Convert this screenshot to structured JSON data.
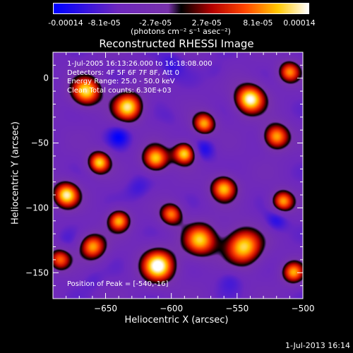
{
  "chart_data": {
    "type": "heatmap",
    "title": "Reconstructed RHESSI Image",
    "xlabel": "Heliocentric X (arcsec)",
    "ylabel": "Heliocentric Y (arcsec)",
    "xlim": [
      -690,
      -500
    ],
    "ylim": [
      -170,
      20
    ],
    "x_ticks": [
      -650,
      -600,
      -550,
      -500
    ],
    "y_ticks": [
      0,
      -50,
      -100,
      -150
    ],
    "colorbar": {
      "ticks": [
        "-0.00014",
        "-8.1e-05",
        "-2.7e-05",
        "2.7e-05",
        "8.1e-05",
        "0.00014"
      ],
      "unit_label": "(photons cm⁻² s⁻¹ asec⁻²)",
      "range": [
        -0.00014,
        0.00014
      ]
    },
    "annotations": [
      "1-Jul-2005 16:13:26.000 to 16:18:08.000",
      "Detectors: 4F 5F 6F 7F 8F, Att 0",
      "Energy Range: 25.0 - 50.0 keV",
      "Clean     Total counts: 6.30E+03"
    ],
    "peak_label": "Position of Peak = [-540,-16]",
    "sources": [
      {
        "x": -610,
        "y": -145,
        "v": 1.0,
        "s": 9
      },
      {
        "x": -540,
        "y": -16,
        "v": 1.0,
        "s": 8
      },
      {
        "x": -545,
        "y": -130,
        "v": 0.85,
        "s": 10
      },
      {
        "x": -578,
        "y": -125,
        "v": 0.75,
        "s": 9
      },
      {
        "x": -680,
        "y": -90,
        "v": 0.9,
        "s": 7
      },
      {
        "x": -665,
        "y": -10,
        "v": 0.85,
        "s": 8
      },
      {
        "x": -655,
        "y": -65,
        "v": 0.8,
        "s": 6
      },
      {
        "x": -633,
        "y": -22,
        "v": 0.85,
        "s": 8
      },
      {
        "x": -612,
        "y": -62,
        "v": 0.8,
        "s": 7
      },
      {
        "x": -590,
        "y": -58,
        "v": 0.85,
        "s": 6
      },
      {
        "x": -560,
        "y": -85,
        "v": 0.75,
        "s": 7
      },
      {
        "x": -520,
        "y": -45,
        "v": 0.75,
        "s": 7
      },
      {
        "x": -515,
        "y": -95,
        "v": 0.7,
        "s": 6
      },
      {
        "x": -640,
        "y": -110,
        "v": 0.7,
        "s": 6
      },
      {
        "x": -660,
        "y": -130,
        "v": 0.7,
        "s": 7
      },
      {
        "x": -507,
        "y": -150,
        "v": 0.65,
        "s": 6
      },
      {
        "x": -600,
        "y": -105,
        "v": 0.6,
        "s": 6
      },
      {
        "x": -575,
        "y": -35,
        "v": 0.7,
        "s": 6
      },
      {
        "x": -510,
        "y": 5,
        "v": 0.6,
        "s": 6
      },
      {
        "x": -685,
        "y": -140,
        "v": 0.55,
        "s": 6
      },
      {
        "x": -640,
        "y": -45,
        "v": -0.9,
        "s": 6
      },
      {
        "x": -575,
        "y": -55,
        "v": -0.85,
        "s": 6
      },
      {
        "x": -520,
        "y": -110,
        "v": -0.85,
        "s": 6
      },
      {
        "x": -600,
        "y": 10,
        "v": -0.75,
        "s": 7
      },
      {
        "x": -625,
        "y": -85,
        "v": -0.7,
        "s": 7
      },
      {
        "x": -555,
        "y": -155,
        "v": -0.7,
        "s": 7
      },
      {
        "x": -680,
        "y": -125,
        "v": -0.6,
        "s": 6
      },
      {
        "x": -565,
        "y": 5,
        "v": -0.6,
        "s": 6
      },
      {
        "x": -600,
        "y": -30,
        "v": -0.55,
        "s": 6
      },
      {
        "x": -660,
        "y": -155,
        "v": -0.6,
        "s": 6
      }
    ]
  },
  "timestamp": "1-Jul-2013 16:14"
}
